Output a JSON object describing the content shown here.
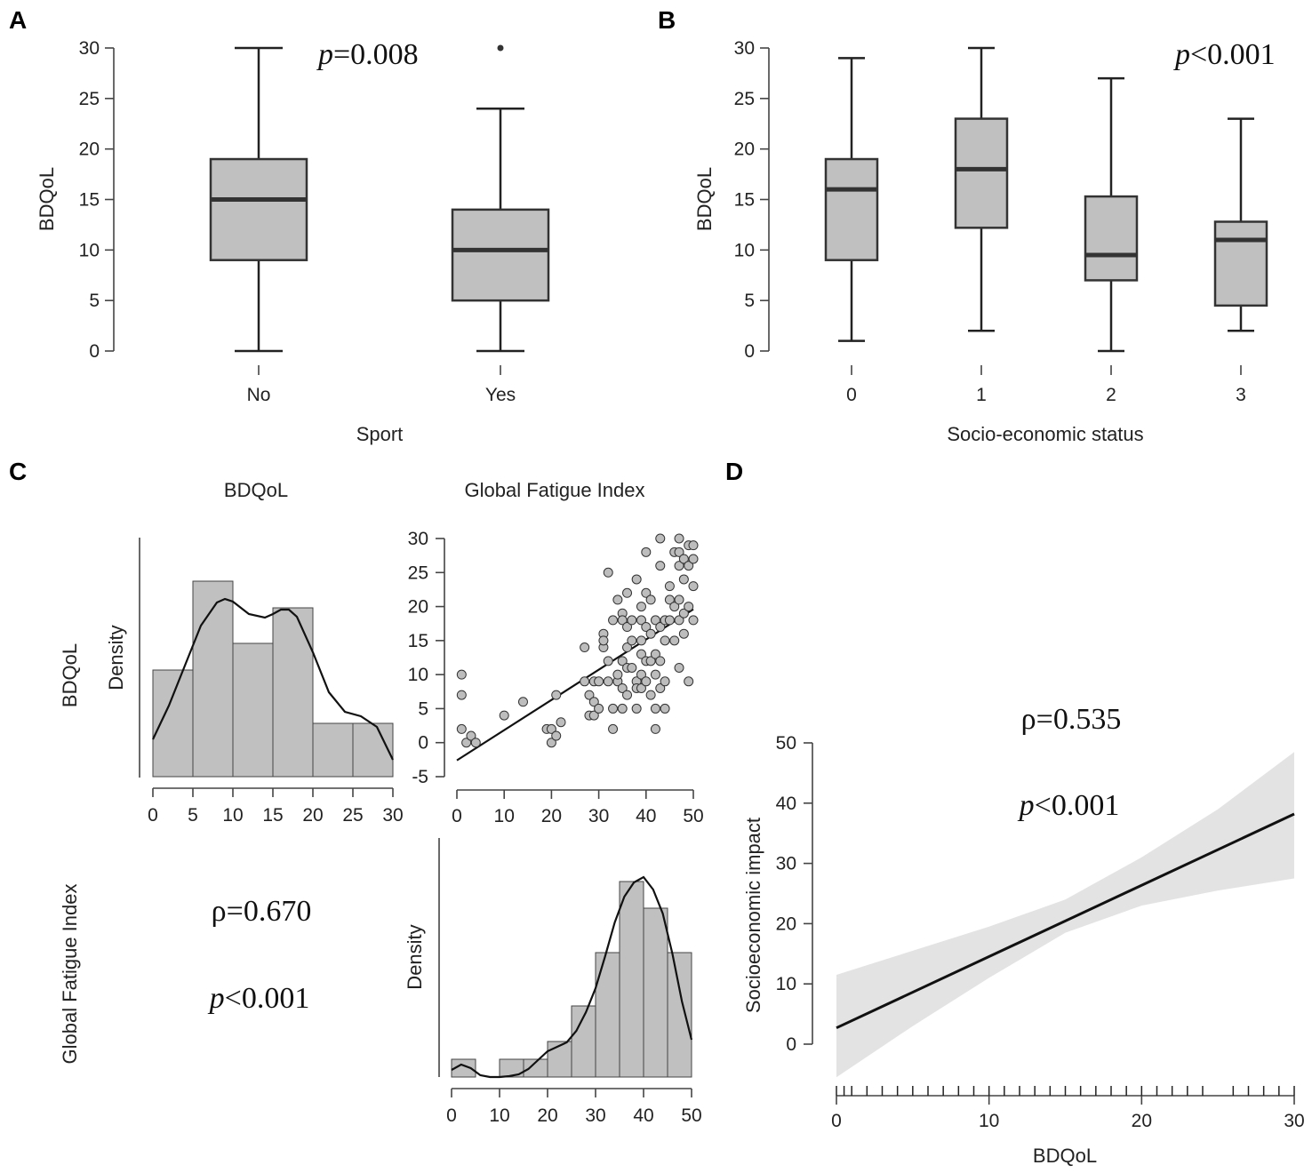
{
  "chart_data": [
    {
      "panel": "A",
      "type": "box",
      "xlabel": "Sport",
      "ylabel": "BDQoL",
      "ylim": [
        0,
        30
      ],
      "yticks": [
        0,
        5,
        10,
        15,
        20,
        25,
        30
      ],
      "annotation": {
        "p_symbol": "p",
        "p_rest": "=0.008"
      },
      "groups": [
        {
          "label": "No",
          "whisker_low": 0,
          "q1": 9,
          "median": 15,
          "q3": 19,
          "whisker_high": 30,
          "outliers": []
        },
        {
          "label": "Yes",
          "whisker_low": 0,
          "q1": 5,
          "median": 10,
          "q3": 14,
          "whisker_high": 24,
          "outliers": [
            30
          ]
        }
      ]
    },
    {
      "panel": "B",
      "type": "box",
      "xlabel": "Socio-economic status",
      "ylabel": "BDQoL",
      "ylim": [
        0,
        30
      ],
      "yticks": [
        0,
        5,
        10,
        15,
        20,
        25,
        30
      ],
      "annotation": {
        "p_symbol": "p",
        "p_rest": "<0.001"
      },
      "groups": [
        {
          "label": "0",
          "whisker_low": 1,
          "q1": 9,
          "median": 16,
          "q3": 19,
          "whisker_high": 29,
          "outliers": []
        },
        {
          "label": "1",
          "whisker_low": 2,
          "q1": 12.2,
          "median": 18,
          "q3": 23,
          "whisker_high": 30,
          "outliers": []
        },
        {
          "label": "2",
          "whisker_low": 0,
          "q1": 7,
          "median": 9.5,
          "q3": 15.3,
          "whisker_high": 27,
          "outliers": []
        },
        {
          "label": "3",
          "whisker_low": 2,
          "q1": 4.5,
          "median": 11,
          "q3": 12.8,
          "whisker_high": 23,
          "outliers": []
        }
      ]
    },
    {
      "panel": "C",
      "type": "correlation-matrix",
      "variables": [
        "BDQoL",
        "Global Fatigue Index"
      ],
      "density_label": "Density",
      "histogram_bdqol": {
        "bins": [
          [
            0,
            5
          ],
          [
            5,
            10
          ],
          [
            10,
            15
          ],
          [
            15,
            20
          ],
          [
            20,
            25
          ],
          [
            25,
            30
          ]
        ],
        "counts": [
          12,
          22,
          15,
          19,
          6,
          6
        ],
        "density_curve_x": [
          0,
          2,
          4,
          6,
          8,
          9,
          10,
          12,
          14,
          15,
          16,
          17,
          18,
          20,
          22,
          24,
          26,
          28,
          30
        ],
        "density_curve_y": [
          4.2,
          8.0,
          12.5,
          17.0,
          19.6,
          20.0,
          19.7,
          18.3,
          17.9,
          18.3,
          18.8,
          18.8,
          18.0,
          14.0,
          9.5,
          7.3,
          6.8,
          5.6,
          1.9
        ],
        "xticks": [
          0,
          5,
          10,
          15,
          20,
          25,
          30
        ]
      },
      "histogram_fatigue": {
        "bins": [
          [
            0,
            5
          ],
          [
            5,
            10
          ],
          [
            10,
            15
          ],
          [
            15,
            20
          ],
          [
            20,
            25
          ],
          [
            25,
            30
          ],
          [
            30,
            35
          ],
          [
            35,
            40
          ],
          [
            40,
            45
          ],
          [
            45,
            50
          ]
        ],
        "counts": [
          2,
          0,
          2,
          2,
          4,
          8,
          14,
          22,
          19,
          14
        ],
        "density_curve_x": [
          0,
          2,
          4,
          6,
          8,
          10,
          12,
          14,
          16,
          18,
          20,
          22,
          24,
          26,
          28,
          30,
          32,
          34,
          36,
          38,
          40,
          42,
          44,
          46,
          48,
          50
        ],
        "density_curve_y": [
          0.8,
          1.4,
          1.0,
          0.2,
          0.0,
          0.0,
          0.1,
          0.3,
          0.9,
          1.9,
          2.9,
          3.4,
          3.9,
          5.2,
          7.3,
          10.0,
          13.6,
          17.4,
          20.3,
          21.9,
          22.5,
          21.1,
          18.4,
          13.9,
          8.5,
          4.2
        ],
        "xticks": [
          0,
          10,
          20,
          30,
          40,
          50
        ]
      },
      "scatter": {
        "xlim": [
          0,
          50
        ],
        "ylim": [
          -5,
          30
        ],
        "xticks": [
          0,
          10,
          20,
          30,
          40,
          50
        ],
        "yticks": [
          -5,
          0,
          5,
          10,
          15,
          20,
          25,
          30
        ],
        "fit": {
          "x": [
            0,
            50
          ],
          "y": [
            -2.6,
            19.6
          ]
        },
        "points": [
          [
            1,
            10
          ],
          [
            1,
            7
          ],
          [
            1,
            2
          ],
          [
            2,
            0
          ],
          [
            3,
            1
          ],
          [
            4,
            0
          ],
          [
            10,
            4
          ],
          [
            14,
            6
          ],
          [
            19,
            2
          ],
          [
            20,
            2
          ],
          [
            20,
            0
          ],
          [
            21,
            1
          ],
          [
            21,
            7
          ],
          [
            22,
            3
          ],
          [
            27,
            14
          ],
          [
            27,
            9
          ],
          [
            28,
            4
          ],
          [
            28,
            7
          ],
          [
            29,
            9
          ],
          [
            29,
            6
          ],
          [
            29,
            4
          ],
          [
            30,
            5
          ],
          [
            30,
            9
          ],
          [
            31,
            16
          ],
          [
            31,
            14
          ],
          [
            31,
            15
          ],
          [
            32,
            25
          ],
          [
            32,
            12
          ],
          [
            32,
            9
          ],
          [
            33,
            5
          ],
          [
            33,
            2
          ],
          [
            33,
            18
          ],
          [
            34,
            21
          ],
          [
            34,
            9
          ],
          [
            34,
            10
          ],
          [
            35,
            19
          ],
          [
            35,
            12
          ],
          [
            35,
            18
          ],
          [
            35,
            8
          ],
          [
            35,
            5
          ],
          [
            36,
            22
          ],
          [
            36,
            11
          ],
          [
            36,
            17
          ],
          [
            36,
            14
          ],
          [
            36,
            7
          ],
          [
            37,
            15
          ],
          [
            37,
            11
          ],
          [
            37,
            18
          ],
          [
            38,
            24
          ],
          [
            38,
            9
          ],
          [
            38,
            8
          ],
          [
            38,
            5
          ],
          [
            39,
            20
          ],
          [
            39,
            18
          ],
          [
            39,
            15
          ],
          [
            39,
            13
          ],
          [
            39,
            10
          ],
          [
            39,
            8
          ],
          [
            40,
            28
          ],
          [
            40,
            22
          ],
          [
            40,
            17
          ],
          [
            40,
            12
          ],
          [
            40,
            9
          ],
          [
            41,
            21
          ],
          [
            41,
            16
          ],
          [
            41,
            12
          ],
          [
            41,
            7
          ],
          [
            42,
            18
          ],
          [
            42,
            13
          ],
          [
            42,
            10
          ],
          [
            42,
            5
          ],
          [
            42,
            2
          ],
          [
            43,
            30
          ],
          [
            43,
            26
          ],
          [
            43,
            17
          ],
          [
            43,
            12
          ],
          [
            43,
            8
          ],
          [
            44,
            18
          ],
          [
            44,
            15
          ],
          [
            44,
            9
          ],
          [
            44,
            5
          ],
          [
            45,
            23
          ],
          [
            45,
            21
          ],
          [
            45,
            18
          ],
          [
            46,
            28
          ],
          [
            46,
            20
          ],
          [
            46,
            15
          ],
          [
            47,
            30
          ],
          [
            47,
            28
          ],
          [
            47,
            26
          ],
          [
            47,
            21
          ],
          [
            47,
            18
          ],
          [
            47,
            11
          ],
          [
            48,
            27
          ],
          [
            48,
            24
          ],
          [
            48,
            19
          ],
          [
            48,
            16
          ],
          [
            49,
            29
          ],
          [
            49,
            26
          ],
          [
            49,
            20
          ],
          [
            49,
            9
          ],
          [
            50,
            29
          ],
          [
            50,
            27
          ],
          [
            50,
            23
          ],
          [
            50,
            18
          ]
        ]
      },
      "annotation": {
        "rho": "ρ=0.670",
        "p_symbol": "p",
        "p_rest": "<0.001"
      }
    },
    {
      "panel": "D",
      "type": "line",
      "xlabel": "BDQoL",
      "ylabel": "Socioeconomic impact",
      "xlim": [
        0,
        30
      ],
      "ylim": [
        0,
        50
      ],
      "xticks": [
        0,
        10,
        20,
        30
      ],
      "yticks": [
        0,
        10,
        20,
        30,
        40,
        50
      ],
      "fit": {
        "x": [
          0,
          30
        ],
        "y": [
          2.7,
          38.2
        ]
      },
      "ci_upper": {
        "x": [
          0,
          5,
          10,
          15,
          20,
          25,
          30
        ],
        "y": [
          11.5,
          15.5,
          19.5,
          24.0,
          31.0,
          39.0,
          48.5
        ]
      },
      "ci_lower": {
        "x": [
          0,
          5,
          10,
          15,
          20,
          25,
          30
        ],
        "y": [
          -5.5,
          3.0,
          11.0,
          18.5,
          23.0,
          25.5,
          27.5
        ]
      },
      "rug": [
        0,
        0.5,
        1,
        2,
        3,
        4,
        5,
        6,
        7,
        8,
        9,
        10,
        11,
        12,
        13,
        14,
        15,
        16,
        17,
        18,
        19,
        20,
        21,
        22,
        23,
        24,
        26,
        27,
        28,
        29,
        30
      ],
      "annotation": {
        "rho": "ρ=0.535",
        "p_symbol": "p",
        "p_rest": "<0.001"
      }
    }
  ]
}
